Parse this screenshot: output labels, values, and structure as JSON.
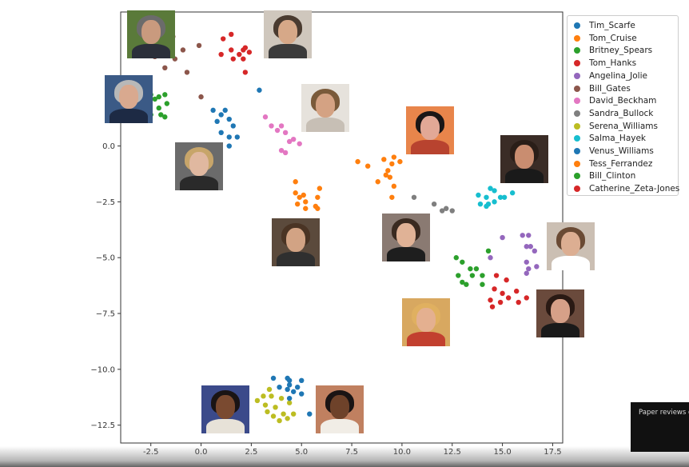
{
  "chart_data": {
    "type": "scatter",
    "xlim": [
      -4,
      18
    ],
    "ylim": [
      -13.3,
      6
    ],
    "x_ticks": [
      -2.5,
      0.0,
      2.5,
      5.0,
      7.5,
      10.0,
      12.5,
      15.0,
      17.5
    ],
    "x_tick_labels": [
      "-2.5",
      "0.0",
      "2.5",
      "5.0",
      "7.5",
      "10.0",
      "12.5",
      "15.0",
      "17.5"
    ],
    "y_ticks": [
      0.0,
      -2.5,
      -5.0,
      -7.5,
      -10.0,
      -12.5
    ],
    "y_tick_labels": [
      "0.0",
      "−2.5",
      "−5.0",
      "−7.5",
      "−10.0",
      "−12.5"
    ],
    "grid": false,
    "legend_position": "outside-top-right",
    "series": [
      {
        "name": "Tim_Scarfe",
        "color": "#1f77b4",
        "points": [
          [
            0.6,
            1.6
          ],
          [
            1.0,
            1.4
          ],
          [
            1.2,
            1.6
          ],
          [
            1.4,
            1.2
          ],
          [
            0.8,
            1.1
          ],
          [
            1.6,
            0.9
          ],
          [
            1.0,
            0.6
          ],
          [
            1.4,
            0.4
          ],
          [
            1.8,
            0.4
          ],
          [
            1.4,
            0.0
          ],
          [
            2.9,
            2.5
          ]
        ]
      },
      {
        "name": "Tom_Cruise",
        "color": "#ff7f0e",
        "points": [
          [
            4.7,
            -1.6
          ],
          [
            5.9,
            -1.9
          ],
          [
            4.7,
            -2.1
          ],
          [
            5.1,
            -2.2
          ],
          [
            4.9,
            -2.3
          ],
          [
            5.8,
            -2.3
          ],
          [
            5.2,
            -2.5
          ],
          [
            4.8,
            -2.6
          ],
          [
            5.7,
            -2.7
          ],
          [
            5.2,
            -2.8
          ],
          [
            5.8,
            -2.8
          ]
        ]
      },
      {
        "name": "Britney_Spears",
        "color": "#2ca02c",
        "points": [
          [
            12.7,
            -5.0
          ],
          [
            13.0,
            -5.2
          ],
          [
            13.4,
            -5.5
          ],
          [
            13.7,
            -5.5
          ],
          [
            12.8,
            -5.8
          ],
          [
            13.5,
            -5.8
          ],
          [
            14.0,
            -5.8
          ],
          [
            13.0,
            -6.1
          ],
          [
            14.0,
            -6.2
          ],
          [
            14.3,
            -4.7
          ],
          [
            13.2,
            -6.2
          ]
        ]
      },
      {
        "name": "Tom_Hanks",
        "color": "#d62728",
        "points": [
          [
            14.7,
            -5.8
          ],
          [
            15.2,
            -6.0
          ],
          [
            14.6,
            -6.4
          ],
          [
            15.0,
            -6.6
          ],
          [
            15.7,
            -6.5
          ],
          [
            15.3,
            -6.8
          ],
          [
            14.4,
            -6.9
          ],
          [
            14.9,
            -7.0
          ],
          [
            16.2,
            -6.8
          ],
          [
            15.8,
            -7.0
          ],
          [
            14.5,
            -7.2
          ]
        ]
      },
      {
        "name": "Angelina_Jolie",
        "color": "#9467bd",
        "points": [
          [
            16.0,
            -4.0
          ],
          [
            16.3,
            -4.0
          ],
          [
            15.0,
            -4.1
          ],
          [
            16.2,
            -4.5
          ],
          [
            16.4,
            -4.5
          ],
          [
            16.6,
            -4.7
          ],
          [
            14.4,
            -5.0
          ],
          [
            16.2,
            -5.2
          ],
          [
            16.7,
            -5.4
          ],
          [
            16.3,
            -5.5
          ],
          [
            16.2,
            -5.7
          ]
        ]
      },
      {
        "name": "Bill_Gates",
        "color": "#8c564b",
        "points": [
          [
            -1.4,
            4.9
          ],
          [
            -1.6,
            4.7
          ],
          [
            -0.1,
            4.5
          ],
          [
            -1.5,
            4.2
          ],
          [
            -0.9,
            4.3
          ],
          [
            -2.3,
            4.0
          ],
          [
            -1.3,
            3.9
          ],
          [
            -1.8,
            3.5
          ],
          [
            -0.7,
            3.3
          ],
          [
            0.0,
            2.2
          ],
          [
            -1.5,
            4.6
          ]
        ]
      },
      {
        "name": "David_Beckham",
        "color": "#e377c2",
        "points": [
          [
            3.2,
            1.3
          ],
          [
            3.5,
            0.9
          ],
          [
            4.0,
            0.9
          ],
          [
            3.8,
            0.7
          ],
          [
            4.2,
            0.6
          ],
          [
            4.6,
            0.3
          ],
          [
            4.4,
            0.2
          ],
          [
            4.0,
            -0.2
          ],
          [
            4.9,
            0.1
          ],
          [
            4.2,
            -0.3
          ]
        ]
      },
      {
        "name": "Sandra_Bullock",
        "color": "#7f7f7f",
        "points": [
          [
            10.6,
            -2.3
          ],
          [
            11.6,
            -2.6
          ],
          [
            12.2,
            -2.8
          ],
          [
            12.5,
            -2.9
          ],
          [
            12.0,
            -2.9
          ]
        ]
      },
      {
        "name": "Serena_Williams",
        "color": "#bcbd22",
        "points": [
          [
            2.8,
            -11.4
          ],
          [
            3.1,
            -11.2
          ],
          [
            3.5,
            -11.2
          ],
          [
            3.2,
            -11.6
          ],
          [
            4.0,
            -11.3
          ],
          [
            4.4,
            -11.5
          ],
          [
            3.7,
            -11.7
          ],
          [
            3.3,
            -11.9
          ],
          [
            4.1,
            -12.0
          ],
          [
            4.6,
            -12.0
          ],
          [
            3.6,
            -12.1
          ],
          [
            3.9,
            -12.3
          ],
          [
            4.3,
            -12.2
          ],
          [
            3.4,
            -10.9
          ]
        ]
      },
      {
        "name": "Salma_Hayek",
        "color": "#17becf",
        "points": [
          [
            14.4,
            -1.9
          ],
          [
            14.6,
            -2.0
          ],
          [
            13.8,
            -2.2
          ],
          [
            14.2,
            -2.3
          ],
          [
            14.9,
            -2.3
          ],
          [
            15.1,
            -2.3
          ],
          [
            15.5,
            -2.1
          ],
          [
            14.6,
            -2.5
          ],
          [
            14.3,
            -2.6
          ],
          [
            13.9,
            -2.6
          ],
          [
            14.2,
            -2.7
          ]
        ]
      },
      {
        "name": "Venus_Williams",
        "color": "#1f77b4",
        "points": [
          [
            3.6,
            -10.4
          ],
          [
            4.3,
            -10.4
          ],
          [
            4.4,
            -10.5
          ],
          [
            5.0,
            -10.5
          ],
          [
            4.4,
            -10.7
          ],
          [
            3.9,
            -10.8
          ],
          [
            4.8,
            -10.8
          ],
          [
            4.3,
            -10.9
          ],
          [
            4.6,
            -11.0
          ],
          [
            5.0,
            -11.1
          ],
          [
            4.4,
            -11.3
          ],
          [
            5.4,
            -12.0
          ]
        ]
      },
      {
        "name": "Tess_Ferrandez",
        "color": "#ff7f0e",
        "points": [
          [
            7.8,
            -0.7
          ],
          [
            8.3,
            -0.9
          ],
          [
            9.1,
            -0.6
          ],
          [
            9.6,
            -0.5
          ],
          [
            9.5,
            -0.8
          ],
          [
            9.9,
            -0.7
          ],
          [
            9.3,
            -1.1
          ],
          [
            9.2,
            -1.3
          ],
          [
            9.4,
            -1.4
          ],
          [
            8.8,
            -1.6
          ],
          [
            9.6,
            -1.8
          ],
          [
            9.5,
            -2.3
          ]
        ]
      },
      {
        "name": "Bill_Clinton",
        "color": "#2ca02c",
        "points": [
          [
            -2.3,
            2.1
          ],
          [
            -2.5,
            2.3
          ],
          [
            -2.1,
            2.2
          ],
          [
            -1.7,
            1.9
          ],
          [
            -1.8,
            2.3
          ],
          [
            -2.1,
            1.7
          ],
          [
            -3.0,
            1.5
          ],
          [
            -2.5,
            1.4
          ],
          [
            -1.8,
            1.3
          ],
          [
            -2.0,
            1.4
          ]
        ]
      },
      {
        "name": "Catherine_Zeta-Jones",
        "color": "#d62728",
        "points": [
          [
            1.1,
            4.8
          ],
          [
            1.5,
            5.0
          ],
          [
            1.0,
            4.1
          ],
          [
            1.5,
            4.3
          ],
          [
            2.1,
            4.3
          ],
          [
            1.9,
            4.1
          ],
          [
            2.2,
            4.4
          ],
          [
            2.4,
            4.2
          ],
          [
            2.1,
            3.9
          ],
          [
            2.2,
            3.3
          ],
          [
            1.6,
            3.9
          ]
        ]
      }
    ]
  },
  "face_images": [
    {
      "name": "bill-gates-photo",
      "x": -2.5,
      "y": 5.0,
      "hair": "#6b6b6b",
      "skin": "#c99a7e",
      "body": "#2b2f3a",
      "bg": "#5a7a3a"
    },
    {
      "name": "tom-hanks-photo",
      "x": 4.3,
      "y": 5.0,
      "hair": "#4a3b30",
      "skin": "#d6a888",
      "body": "#3b3b3b",
      "bg": "#cfc7bd"
    },
    {
      "name": "bill-clinton-photo",
      "x": -3.6,
      "y": 2.1,
      "hair": "#b8b8b8",
      "skin": "#d9a98f",
      "body": "#1d2a44",
      "bg": "#3b5a86"
    },
    {
      "name": "david-beckham-photo",
      "x": 6.2,
      "y": 1.7,
      "hair": "#7a5a3a",
      "skin": "#d4a283",
      "body": "#c7bfb5",
      "bg": "#e6e2dc"
    },
    {
      "name": "tim-scarfe-photo",
      "x": -0.1,
      "y": -0.9,
      "hair": "#c7a56a",
      "skin": "#e0b8a0",
      "body": "#2a2a2a",
      "bg": "#6b6b6b"
    },
    {
      "name": "tess-ferrandez-photo",
      "x": 11.4,
      "y": 0.7,
      "hair": "#1a1616",
      "skin": "#e2a896",
      "body": "#b8432f",
      "bg": "#e8854b"
    },
    {
      "name": "salma-hayek-photo",
      "x": 16.1,
      "y": -0.6,
      "hair": "#2a1e18",
      "skin": "#c98d70",
      "body": "#1a1a1a",
      "bg": "#3a2c26"
    },
    {
      "name": "tom-cruise-photo",
      "x": 4.7,
      "y": -4.3,
      "hair": "#4a3424",
      "skin": "#d2a384",
      "body": "#2f2f2f",
      "bg": "#5b4a3c"
    },
    {
      "name": "sandra-bullock-photo",
      "x": 10.2,
      "y": -4.1,
      "hair": "#3a2a20",
      "skin": "#e0b296",
      "body": "#1e1e1e",
      "bg": "#8a7a72"
    },
    {
      "name": "angelina-jolie-photo",
      "x": 18.4,
      "y": -4.5,
      "hair": "#6a4a34",
      "skin": "#dcae92",
      "body": "#ffffff",
      "bg": "#cbbfb3"
    },
    {
      "name": "catherine-zeta-jones-photo",
      "x": 17.9,
      "y": -7.5,
      "hair": "#2a1a14",
      "skin": "#d6a088",
      "body": "#1a1a1a",
      "bg": "#6a4a3c"
    },
    {
      "name": "britney-spears-photo",
      "x": 11.2,
      "y": -7.9,
      "hair": "#e0b060",
      "skin": "#e4b090",
      "body": "#c2402f",
      "bg": "#d8a860"
    },
    {
      "name": "serena-williams-photo",
      "x": 1.2,
      "y": -11.8,
      "hair": "#1a1414",
      "skin": "#7a4a30",
      "body": "#e7e2d8",
      "bg": "#3b4a8a"
    },
    {
      "name": "venus-williams-photo",
      "x": 6.9,
      "y": -11.8,
      "hair": "#1a1414",
      "skin": "#6e422a",
      "body": "#f1ede6",
      "bg": "#c08060"
    }
  ],
  "notification": {
    "text": "Paper reviews o"
  }
}
